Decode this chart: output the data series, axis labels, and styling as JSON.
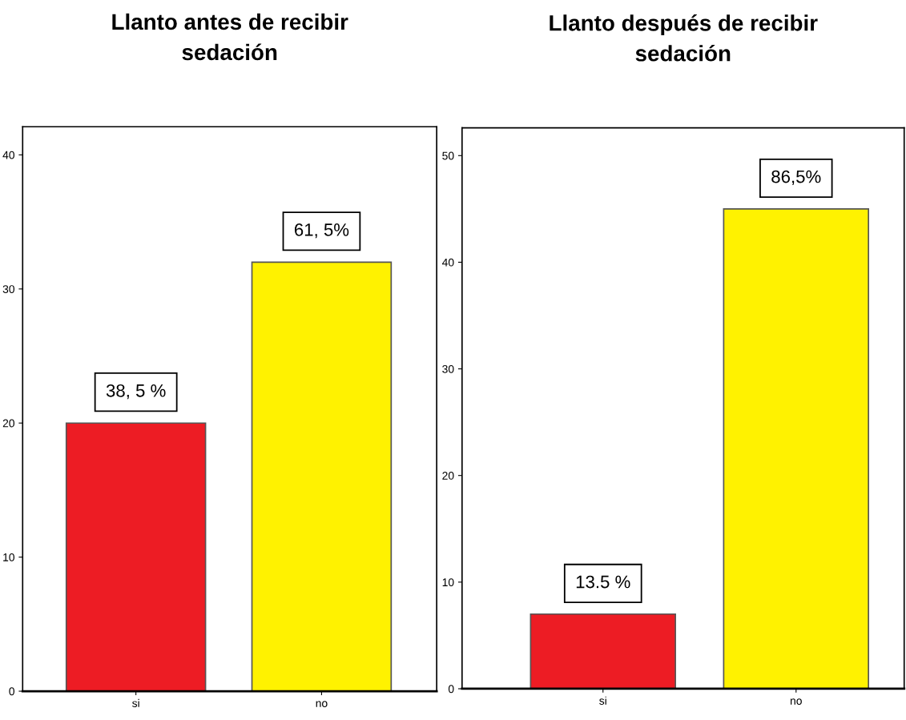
{
  "chart_data": [
    {
      "type": "bar",
      "title": "Llanto antes de recibir\nsedación",
      "categories": [
        "si",
        "no"
      ],
      "values": [
        20,
        32
      ],
      "colors": [
        "#ed1c24",
        "#fff200"
      ],
      "annotations": [
        {
          "text": "38, 5 %",
          "x": "si",
          "y": 20
        },
        {
          "text": "61, 5%",
          "x": "no",
          "y": 32
        }
      ],
      "ylim": [
        0,
        42.1
      ],
      "yticks": [
        0,
        10,
        20,
        30,
        40
      ],
      "grid": false,
      "legend": false
    },
    {
      "type": "bar",
      "title": "Llanto después de recibir\nsedación",
      "categories": [
        "si",
        "no"
      ],
      "values": [
        7,
        45
      ],
      "colors": [
        "#ed1c24",
        "#fff200"
      ],
      "annotations": [
        {
          "text": "13.5 %",
          "x": "si",
          "y": 7
        },
        {
          "text": "86,5%",
          "x": "no",
          "y": 45
        }
      ],
      "ylim": [
        0,
        52.6
      ],
      "yticks": [
        0,
        10,
        20,
        30,
        40,
        50
      ],
      "grid": false,
      "legend": false
    }
  ]
}
